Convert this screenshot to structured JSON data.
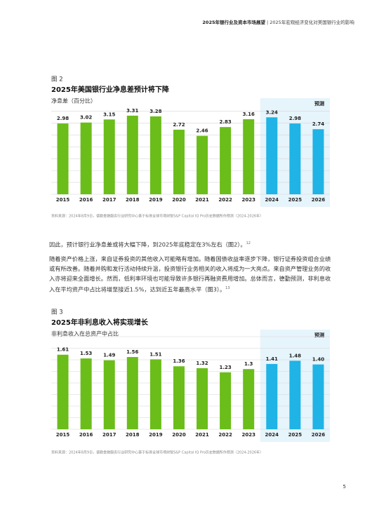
{
  "header": {
    "report": "2025年银行业及资本市场展望",
    "section": "| 2025年宏观经济变化对美国银行业的影响"
  },
  "chart_data": [
    {
      "type": "bar",
      "figure": "图 2",
      "title": "2025年美国银行业净息差预计将下降",
      "subtitle": "净息差（百分比）",
      "categories": [
        "2015",
        "2016",
        "2017",
        "2018",
        "2019",
        "2020",
        "2021",
        "2022",
        "2023",
        "2024",
        "2025",
        "2026"
      ],
      "values": [
        2.98,
        3.02,
        3.15,
        3.31,
        3.28,
        2.72,
        2.46,
        2.83,
        3.16,
        3.24,
        2.98,
        2.74
      ],
      "colors": [
        "#6bbd1a",
        "#6bbd1a",
        "#6bbd1a",
        "#6bbd1a",
        "#6bbd1a",
        "#6bbd1a",
        "#6bbd1a",
        "#6bbd1a",
        "#6bbd1a",
        "#1fb3e6",
        "#1fb3e6",
        "#1fb3e6"
      ],
      "forecast_color": "#1fb3e6",
      "forecast_label": "预测",
      "ylim": [
        0,
        3.75
      ],
      "yticks": [
        0,
        0.5,
        1,
        1.5,
        2,
        2.5,
        3,
        3.5
      ],
      "grid": true,
      "source": "资料来源：2024年8月9日，德勤金融服务行业研究中心基于标普全球市场财智S&P Capital IQ Pro历史数据所作预测（2024-2026年）"
    },
    {
      "type": "bar",
      "figure": "图 3",
      "title": "2025年非利息收入将实现增长",
      "subtitle": "非利息收入在总资产中占比",
      "categories": [
        "2015",
        "2016",
        "2017",
        "2018",
        "2019",
        "2020",
        "2021",
        "2022",
        "2023",
        "2024",
        "2025",
        "2026"
      ],
      "values": [
        1.61,
        1.53,
        1.49,
        1.56,
        1.51,
        1.36,
        1.32,
        1.23,
        1.3,
        1.41,
        1.48,
        1.4
      ],
      "value_labels": [
        "1.61",
        "1.53",
        "1.49",
        "1.56",
        "1.51",
        "1.36",
        "1.32",
        "1.23",
        "1.3",
        "1.41",
        "1.48",
        "1.40"
      ],
      "colors": [
        "#6bbd1a",
        "#6bbd1a",
        "#6bbd1a",
        "#6bbd1a",
        "#6bbd1a",
        "#6bbd1a",
        "#6bbd1a",
        "#6bbd1a",
        "#6bbd1a",
        "#1fb3e6",
        "#1fb3e6",
        "#1fb3e6"
      ],
      "forecast_color": "#1fb3e6",
      "forecast_label": "预测",
      "ylim": [
        0,
        2
      ],
      "yticks": [
        0,
        0.25,
        0.5,
        0.75,
        1,
        1.25,
        1.5,
        1.75,
        2
      ],
      "grid": true,
      "source": "资料来源：2024年8月9日，德勤金融服务行业研究中心基于标普全球市场财智S&P Capital IQ Pro历史数据所作预测（2024-2026年）"
    }
  ],
  "paragraphs": [
    {
      "text": "因此，预计银行业净息差或将大幅下降，到2025年底稳定在3%左右（图2）。",
      "note": "12"
    },
    {
      "text": "随着资产价格上涨，来自证券投资的其他收入可能略有增加。随着国债收益率逐步下降，银行证券投资组合业绩或有所改善。随着并购和发行活动持续升温，投资银行业务相关的收入将成为一大亮点。来自资产管理业务的收入亦将迎来全面增长。然而，低利率环境也可能导致许多银行再融资费用增加。总体而言，德勤预测，非利息收入在平均资产中占比将增至接近1.5%，达到近五年最高水平（图3）。",
      "note": "13"
    }
  ],
  "page_number": "5"
}
